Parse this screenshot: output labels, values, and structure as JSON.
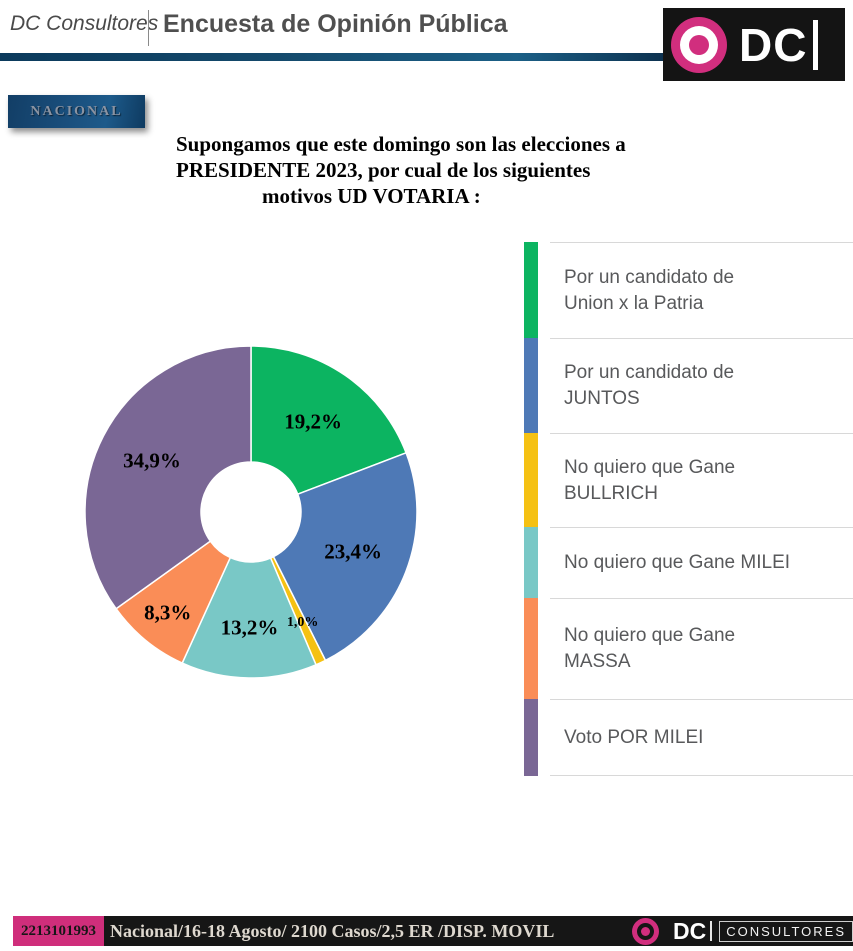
{
  "header": {
    "brand": "DC Consultores",
    "title": "Encuesta de Opinión Pública",
    "logo_text": "DC"
  },
  "badge": {
    "label": "NACIONAL"
  },
  "question": {
    "lines": [
      "Supongamos que este domingo son las elecciones a",
      "PRESIDENTE 2023, por cual de los siguientes",
      "motivos UD VOTARIA :"
    ]
  },
  "chart_data": {
    "type": "pie",
    "donut": true,
    "hole_ratio": 0.3,
    "start_angle_deg": -90,
    "direction": "clockwise",
    "legend_position": "right",
    "slices": [
      {
        "category": "Por un candidato de Union x la Patria",
        "legend_lines": [
          "Por un candidato de",
          "Union x la Patria"
        ],
        "value": 19.2,
        "label": "19,2%",
        "color": "#0cb461"
      },
      {
        "category": "Por un candidato de JUNTOS",
        "legend_lines": [
          "Por un candidato de",
          "JUNTOS"
        ],
        "value": 23.4,
        "label": "23,4%",
        "color": "#4e79b6"
      },
      {
        "category": "No quiero que Gane BULLRICH",
        "legend_lines": [
          "No quiero que Gane",
          "BULLRICH"
        ],
        "value": 1.0,
        "label": "1,0%",
        "color": "#f5c113"
      },
      {
        "category": "No quiero que Gane MILEI",
        "legend_lines": [
          "No quiero que Gane MILEI"
        ],
        "value": 13.2,
        "label": "13,2%",
        "color": "#79c8c6"
      },
      {
        "category": "No quiero que Gane MASSA",
        "legend_lines": [
          "No quiero que Gane",
          "MASSA"
        ],
        "value": 8.3,
        "label": "8,3%",
        "color": "#fa8d57"
      },
      {
        "category": "Voto POR MILEI",
        "legend_lines": [
          "Voto POR MILEI"
        ],
        "value": 34.9,
        "label": "34,9%",
        "color": "#7a6795"
      }
    ]
  },
  "footer": {
    "code": "2213101993",
    "meta": "Nacional/16-18 Agosto/ 2100 Casos/2,5 ER /DISP. MOVIL",
    "logo_text": "DC",
    "logo_sub": "CONSULTORES",
    "accent_pink": "#cf2e7b"
  }
}
